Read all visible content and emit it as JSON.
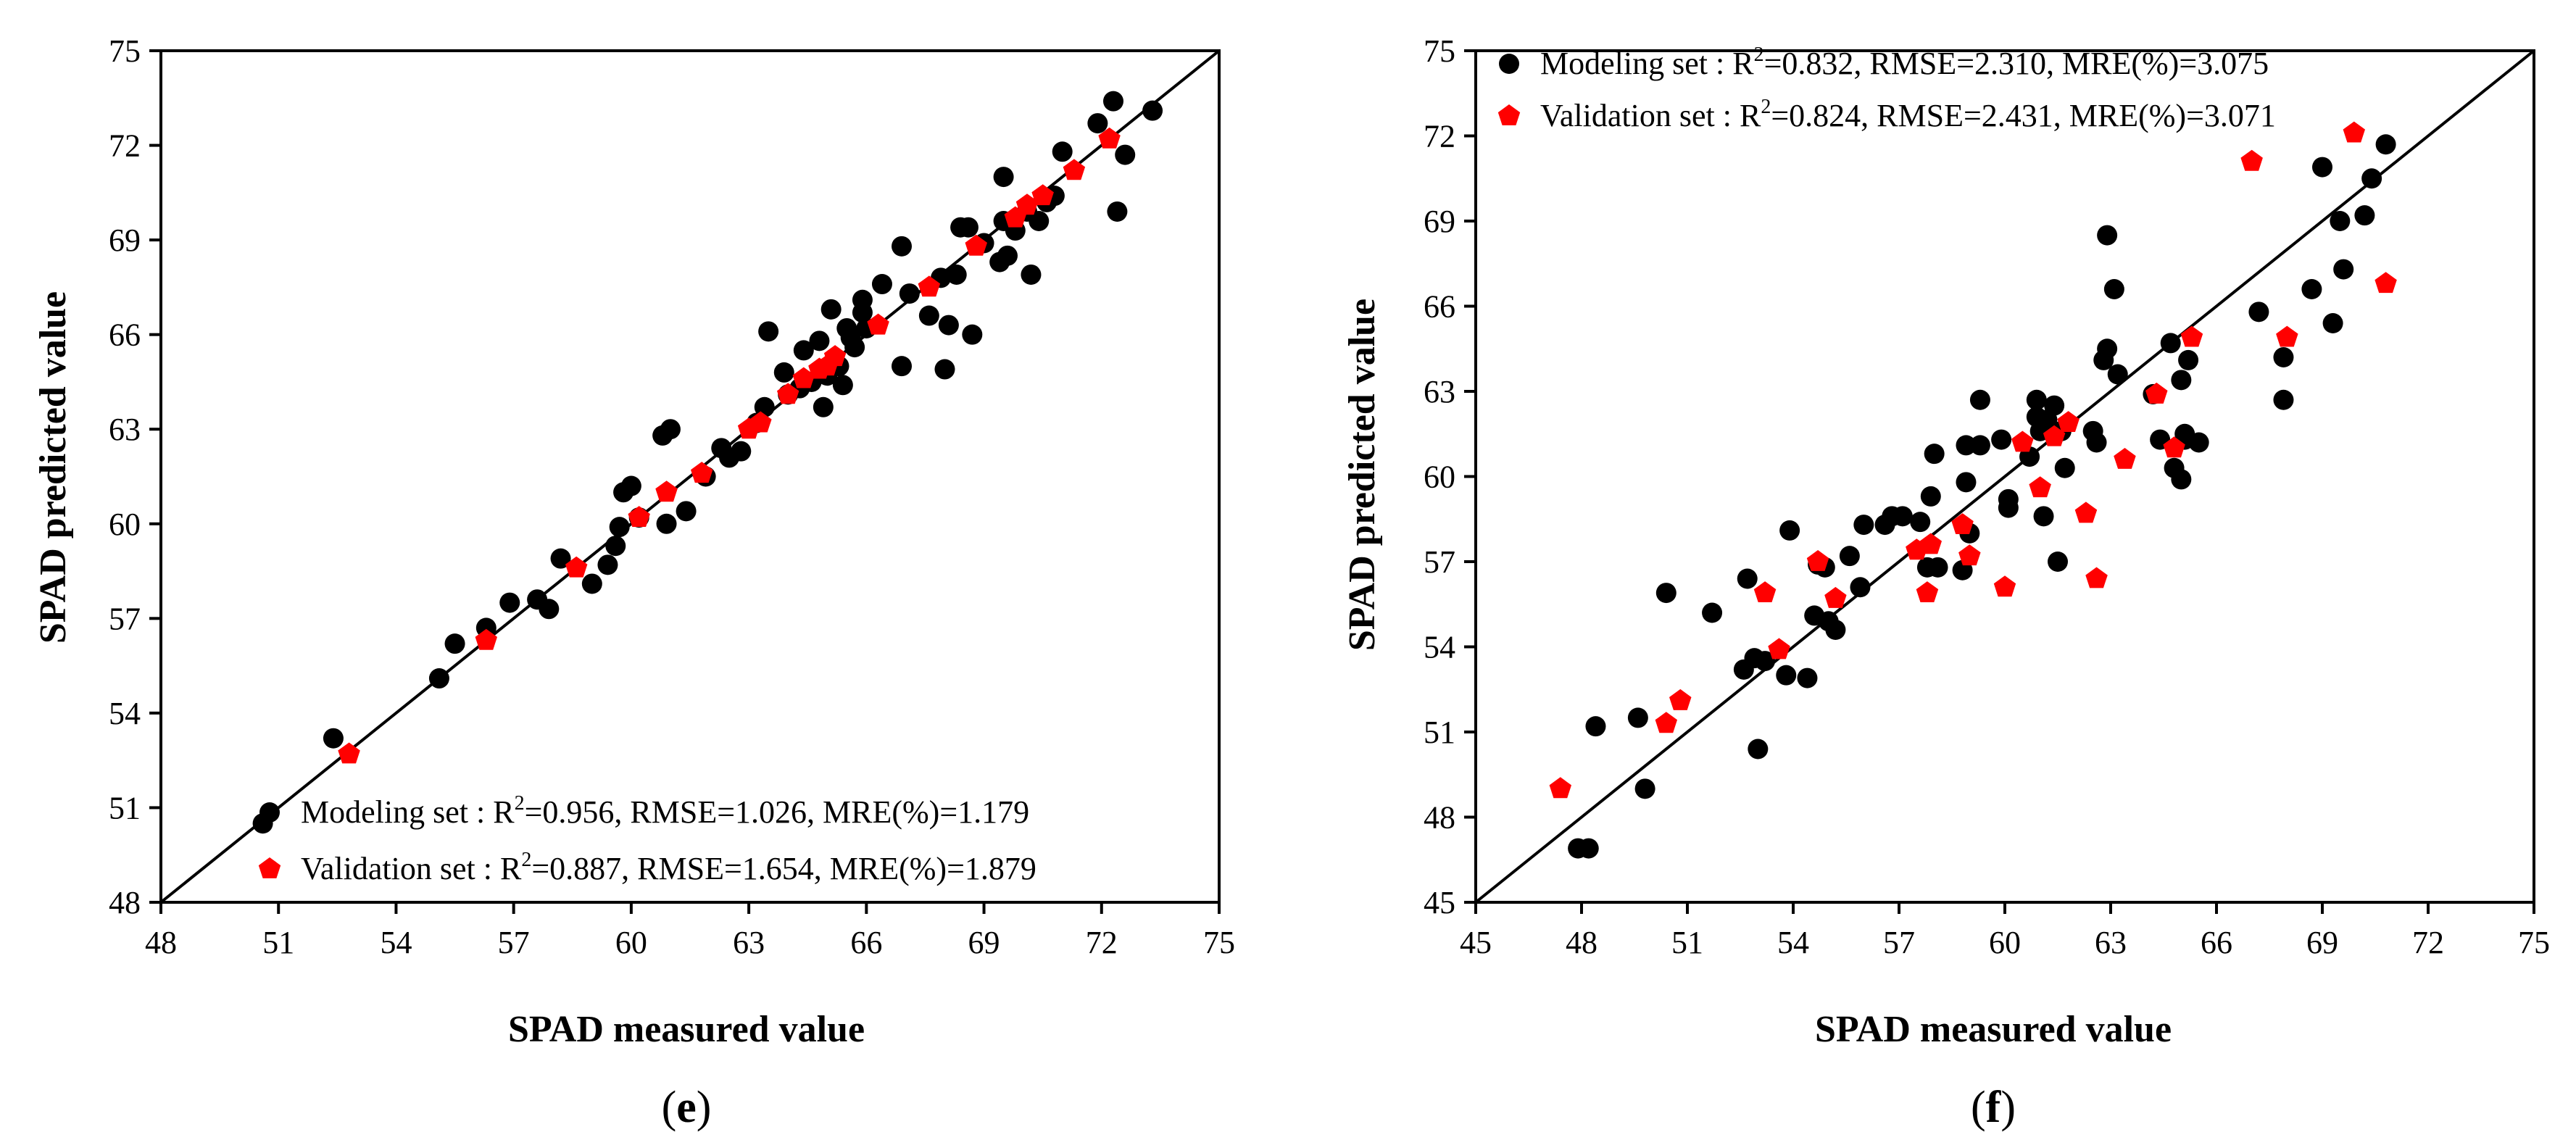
{
  "colors": {
    "modeling": "#000000",
    "validation": "#ff0000",
    "axis": "#000000"
  },
  "chart_data": [
    {
      "type": "scatter",
      "panel_label": "(e)",
      "panel_letter": "e",
      "xlabel": "SPAD measured value",
      "ylabel": "SPAD predicted value",
      "xlim": [
        48,
        75
      ],
      "ylim": [
        48,
        75
      ],
      "xticks": [
        48,
        51,
        54,
        57,
        60,
        63,
        66,
        69,
        72,
        75
      ],
      "yticks": [
        48,
        51,
        54,
        57,
        60,
        63,
        66,
        69,
        72,
        75
      ],
      "reference_line": "1:1",
      "legend_position": "bottom-right",
      "legend": [
        {
          "key": "modeling",
          "prefix": "Modeling set  : R",
          "sup": "2",
          "suffix": "=0.956, RMSE=1.026, MRE(%)=1.179"
        },
        {
          "key": "validation",
          "prefix": "Validation set : R",
          "sup": "2",
          "suffix": "=0.887, RMSE=1.654, MRE(%)=1.879"
        }
      ],
      "series": [
        {
          "name": "Modeling set",
          "marker": "circle",
          "points": [
            [
              50.6,
              50.5
            ],
            [
              52.4,
              53.2
            ],
            [
              55.1,
              55.1
            ],
            [
              55.5,
              56.2
            ],
            [
              56.3,
              56.7
            ],
            [
              56.9,
              57.5
            ],
            [
              57.6,
              57.6
            ],
            [
              57.9,
              57.3
            ],
            [
              58.2,
              58.9
            ],
            [
              59.0,
              58.1
            ],
            [
              59.4,
              58.7
            ],
            [
              59.6,
              59.3
            ],
            [
              59.7,
              59.9
            ],
            [
              59.8,
              61.0
            ],
            [
              60.0,
              61.2
            ],
            [
              60.2,
              60.2
            ],
            [
              60.8,
              62.8
            ],
            [
              60.9,
              60.0
            ],
            [
              61.0,
              63.0
            ],
            [
              61.4,
              60.4
            ],
            [
              61.9,
              61.5
            ],
            [
              62.3,
              62.4
            ],
            [
              62.5,
              62.1
            ],
            [
              62.8,
              62.3
            ],
            [
              63.2,
              63.2
            ],
            [
              63.4,
              63.7
            ],
            [
              63.5,
              66.1
            ],
            [
              63.9,
              64.8
            ],
            [
              64.0,
              64.1
            ],
            [
              64.3,
              64.3
            ],
            [
              64.4,
              65.5
            ],
            [
              64.6,
              64.5
            ],
            [
              64.8,
              65.8
            ],
            [
              64.9,
              63.7
            ],
            [
              65.0,
              64.7
            ],
            [
              65.1,
              66.8
            ],
            [
              65.3,
              65.0
            ],
            [
              65.4,
              64.4
            ],
            [
              65.5,
              66.2
            ],
            [
              65.6,
              65.9
            ],
            [
              65.7,
              65.6
            ],
            [
              65.9,
              66.7
            ],
            [
              65.9,
              67.1
            ],
            [
              66.0,
              66.2
            ],
            [
              66.4,
              67.6
            ],
            [
              66.9,
              68.8
            ],
            [
              66.9,
              65.0
            ],
            [
              67.1,
              67.3
            ],
            [
              67.6,
              66.6
            ],
            [
              67.9,
              67.8
            ],
            [
              68.0,
              64.9
            ],
            [
              68.1,
              66.3
            ],
            [
              68.3,
              67.9
            ],
            [
              68.4,
              69.4
            ],
            [
              68.6,
              69.4
            ],
            [
              68.7,
              66.0
            ],
            [
              69.0,
              68.9
            ],
            [
              69.4,
              68.3
            ],
            [
              69.5,
              71.0
            ],
            [
              69.5,
              69.6
            ],
            [
              69.6,
              68.5
            ],
            [
              69.8,
              69.3
            ],
            [
              70.1,
              69.9
            ],
            [
              70.2,
              67.9
            ],
            [
              70.4,
              69.6
            ],
            [
              70.6,
              70.2
            ],
            [
              70.8,
              70.4
            ],
            [
              71.0,
              71.8
            ],
            [
              71.9,
              72.7
            ],
            [
              72.3,
              73.4
            ],
            [
              72.4,
              69.9
            ],
            [
              72.6,
              71.7
            ],
            [
              73.3,
              73.1
            ]
          ]
        },
        {
          "name": "Validation set",
          "marker": "pentagon",
          "points": [
            [
              52.8,
              52.7
            ],
            [
              56.3,
              56.3
            ],
            [
              58.6,
              58.6
            ],
            [
              60.2,
              60.2
            ],
            [
              60.9,
              61.0
            ],
            [
              61.8,
              61.6
            ],
            [
              63.0,
              63.0
            ],
            [
              63.3,
              63.2
            ],
            [
              64.0,
              64.1
            ],
            [
              64.4,
              64.6
            ],
            [
              64.8,
              64.9
            ],
            [
              65.0,
              65.0
            ],
            [
              65.2,
              65.3
            ],
            [
              66.3,
              66.3
            ],
            [
              67.6,
              67.5
            ],
            [
              68.8,
              68.8
            ],
            [
              69.8,
              69.7
            ],
            [
              70.1,
              70.1
            ],
            [
              70.5,
              70.4
            ],
            [
              71.3,
              71.2
            ],
            [
              72.2,
              72.2
            ]
          ]
        }
      ]
    },
    {
      "type": "scatter",
      "panel_label": "(f)",
      "panel_letter": "f",
      "xlabel": "SPAD measured value",
      "ylabel": "SPAD predicted value",
      "xlim": [
        45,
        75
      ],
      "ylim": [
        45,
        75
      ],
      "xticks": [
        45,
        48,
        51,
        54,
        57,
        60,
        63,
        66,
        69,
        72,
        75
      ],
      "yticks": [
        45,
        48,
        51,
        54,
        57,
        60,
        63,
        66,
        69,
        72,
        75
      ],
      "reference_line": "1:1",
      "legend_position": "top-left",
      "legend": [
        {
          "key": "modeling",
          "prefix": "Modeling set  : R",
          "sup": "2",
          "suffix": "=0.832, RMSE=2.310, MRE(%)=3.075"
        },
        {
          "key": "validation",
          "prefix": "Validation set : R",
          "sup": "2",
          "suffix": "=0.824, RMSE=2.431, MRE(%)=3.071"
        }
      ],
      "series": [
        {
          "name": "Modeling set",
          "marker": "circle",
          "points": [
            [
              47.9,
              46.9
            ],
            [
              48.2,
              46.9
            ],
            [
              48.4,
              51.2
            ],
            [
              49.6,
              51.5
            ],
            [
              49.8,
              49.0
            ],
            [
              50.4,
              55.9
            ],
            [
              51.7,
              55.2
            ],
            [
              52.6,
              53.2
            ],
            [
              52.7,
              56.4
            ],
            [
              52.9,
              53.6
            ],
            [
              53.0,
              50.4
            ],
            [
              53.2,
              53.5
            ],
            [
              53.8,
              53.0
            ],
            [
              53.9,
              58.1
            ],
            [
              54.4,
              52.9
            ],
            [
              54.6,
              55.1
            ],
            [
              54.7,
              56.9
            ],
            [
              54.9,
              56.8
            ],
            [
              55.0,
              54.9
            ],
            [
              55.2,
              54.6
            ],
            [
              55.6,
              57.2
            ],
            [
              55.9,
              56.1
            ],
            [
              56.0,
              58.3
            ],
            [
              56.6,
              58.3
            ],
            [
              56.8,
              58.6
            ],
            [
              57.1,
              58.6
            ],
            [
              57.6,
              58.4
            ],
            [
              57.8,
              56.8
            ],
            [
              57.9,
              59.3
            ],
            [
              58.0,
              60.8
            ],
            [
              58.1,
              56.8
            ],
            [
              58.8,
              56.7
            ],
            [
              58.9,
              59.8
            ],
            [
              58.9,
              61.1
            ],
            [
              59.0,
              58.0
            ],
            [
              59.3,
              61.1
            ],
            [
              59.3,
              62.7
            ],
            [
              59.9,
              61.3
            ],
            [
              60.1,
              58.9
            ],
            [
              60.1,
              59.2
            ],
            [
              60.7,
              60.7
            ],
            [
              60.9,
              62.1
            ],
            [
              60.9,
              62.7
            ],
            [
              61.0,
              61.6
            ],
            [
              61.1,
              58.6
            ],
            [
              61.2,
              62.0
            ],
            [
              61.4,
              62.5
            ],
            [
              61.5,
              57.0
            ],
            [
              61.6,
              61.6
            ],
            [
              61.7,
              60.3
            ],
            [
              62.5,
              61.6
            ],
            [
              62.6,
              61.2
            ],
            [
              62.8,
              64.1
            ],
            [
              62.9,
              64.5
            ],
            [
              62.9,
              68.5
            ],
            [
              63.1,
              66.6
            ],
            [
              63.2,
              63.6
            ],
            [
              64.2,
              62.9
            ],
            [
              64.4,
              61.3
            ],
            [
              64.7,
              64.7
            ],
            [
              64.8,
              60.3
            ],
            [
              65.0,
              63.4
            ],
            [
              65.0,
              59.9
            ],
            [
              65.1,
              61.3
            ],
            [
              65.1,
              61.5
            ],
            [
              65.2,
              64.1
            ],
            [
              65.5,
              61.2
            ],
            [
              67.2,
              65.8
            ],
            [
              67.9,
              62.7
            ],
            [
              67.9,
              64.2
            ],
            [
              68.7,
              66.6
            ],
            [
              69.0,
              70.9
            ],
            [
              69.3,
              65.4
            ],
            [
              69.5,
              69.0
            ],
            [
              69.6,
              67.3
            ],
            [
              70.2,
              69.2
            ],
            [
              70.4,
              70.5
            ],
            [
              70.8,
              71.7
            ]
          ]
        },
        {
          "name": "Validation set",
          "marker": "pentagon",
          "points": [
            [
              47.4,
              49.0
            ],
            [
              50.4,
              51.3
            ],
            [
              50.8,
              52.1
            ],
            [
              53.2,
              55.9
            ],
            [
              53.6,
              53.9
            ],
            [
              54.7,
              57.0
            ],
            [
              55.2,
              55.7
            ],
            [
              57.5,
              57.4
            ],
            [
              57.8,
              55.9
            ],
            [
              57.9,
              57.6
            ],
            [
              58.8,
              58.3
            ],
            [
              59.0,
              57.2
            ],
            [
              60.0,
              56.1
            ],
            [
              60.5,
              61.2
            ],
            [
              61.0,
              59.6
            ],
            [
              61.4,
              61.4
            ],
            [
              61.8,
              61.9
            ],
            [
              62.3,
              58.7
            ],
            [
              62.6,
              56.4
            ],
            [
              63.4,
              60.6
            ],
            [
              64.3,
              62.9
            ],
            [
              64.8,
              61.0
            ],
            [
              65.3,
              64.9
            ],
            [
              67.0,
              71.1
            ],
            [
              68.0,
              64.9
            ],
            [
              69.9,
              72.1
            ],
            [
              70.8,
              66.8
            ]
          ]
        }
      ]
    }
  ]
}
